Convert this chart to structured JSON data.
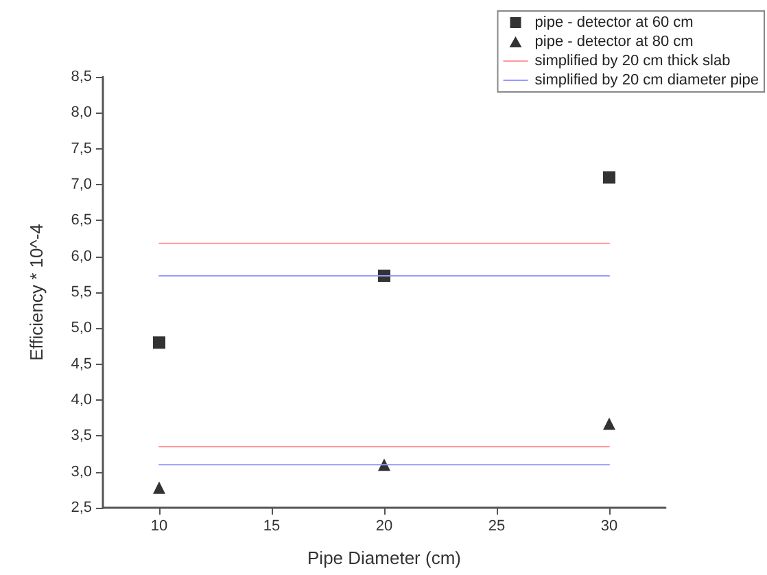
{
  "chart_data": {
    "type": "scatter",
    "xlabel": "Pipe Diameter (cm)",
    "ylabel": "Efficiency * 10^-4",
    "series": [
      {
        "name": "pipe - detector at 60 cm",
        "color": "#000000",
        "marker": "square",
        "x": [
          10,
          20,
          30
        ],
        "values": [
          4.8,
          5.73,
          7.1
        ]
      },
      {
        "name": "pipe - detector at 80 cm",
        "color": "#000000",
        "marker": "triangle",
        "x": [
          10,
          20,
          30
        ],
        "values": [
          2.78,
          3.1,
          3.67
        ]
      },
      {
        "name": "simplified by 20 cm thick slab",
        "type": "line",
        "color": "#ff9999",
        "marker": "none",
        "x": [
          10,
          30
        ],
        "values": [
          6.18,
          6.18
        ]
      },
      {
        "name": "simplified by 20 cm diameter pipe",
        "type": "line",
        "color": "#9999ff",
        "marker": "none",
        "x": [
          10,
          30
        ],
        "values": [
          5.73,
          5.73
        ]
      },
      {
        "type": "line",
        "color": "#ff9999",
        "marker": "none",
        "x": [
          10,
          30
        ],
        "values": [
          3.35,
          3.35
        ]
      },
      {
        "type": "line",
        "color": "#9999ff",
        "marker": "none",
        "x": [
          10,
          30
        ],
        "values": [
          3.1,
          3.1
        ]
      }
    ],
    "xlim": [
      7.5,
      32.5
    ],
    "xticks": [
      10,
      15,
      20,
      25,
      30
    ],
    "ylim": [
      2.5,
      8.5
    ],
    "yticks": [
      {
        "value": 2.5,
        "label": "2,5"
      },
      {
        "value": 3,
        "label": "3,0"
      },
      {
        "value": 3.5,
        "label": "3,5"
      },
      {
        "value": 4,
        "label": "4,0"
      },
      {
        "value": 4.5,
        "label": "4,5"
      },
      {
        "value": 5,
        "label": "5,0"
      },
      {
        "value": 5.5,
        "label": "5,5"
      },
      {
        "value": 6,
        "label": "6,0"
      },
      {
        "value": 6.5,
        "label": "6,5"
      },
      {
        "value": 7,
        "label": "7,0"
      },
      {
        "value": 7.5,
        "label": "7,5"
      },
      {
        "value": 8,
        "label": "8,0"
      },
      {
        "value": 8.5,
        "label": "8,5"
      }
    ],
    "grid": false,
    "legend": "top right"
  }
}
